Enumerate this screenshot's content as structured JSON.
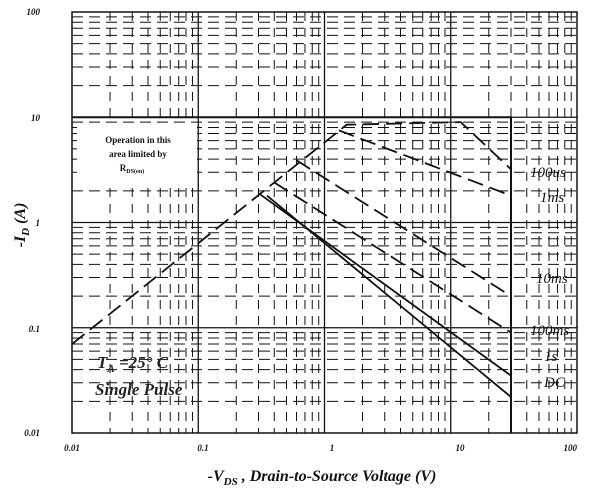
{
  "chart_data": {
    "type": "line",
    "xscale": "log",
    "yscale": "log",
    "xlim": [
      0.01,
      100
    ],
    "ylim": [
      0.01,
      100
    ],
    "grid": true,
    "x_ticks": [
      "0.01",
      "0.1",
      "1",
      "10",
      "100"
    ],
    "y_ticks": [
      "100",
      "10",
      "1",
      "0.1",
      "0.01"
    ],
    "xlabel_prefix": "-V",
    "xlabel_sub": "DS",
    "xlabel_rest": " , Drain-to-Source Voltage (V)",
    "ylabel_prefix": "-I",
    "ylabel_sub": "D",
    "ylabel_rest": " (A)",
    "rds_box": {
      "line1": "Operation in this",
      "line2": "area limited by",
      "line3": "R",
      "line3_sub": "DS(on)"
    },
    "conditions": {
      "line1_prefix": "T",
      "line1_sub": "A",
      "line1_rest": " =25° C",
      "line2": "Single Pulse"
    },
    "series": [
      {
        "name": "100us",
        "style": "dashed",
        "x": [
          0.01,
          1.5,
          12,
          30
        ],
        "y": [
          0.07,
          8.5,
          9,
          3.2
        ]
      },
      {
        "name": "1ms",
        "style": "dashed",
        "x": [
          1.3,
          30
        ],
        "y": [
          7.5,
          1.8
        ]
      },
      {
        "name": "10ms",
        "style": "dashed",
        "x": [
          0.6,
          30
        ],
        "y": [
          3.9,
          0.2
        ]
      },
      {
        "name": "100ms",
        "style": "dashed",
        "x": [
          0.4,
          30
        ],
        "y": [
          2.4,
          0.09
        ]
      },
      {
        "name": "1s",
        "style": "solid",
        "x": [
          0.3,
          30
        ],
        "y": [
          1.9,
          0.035
        ]
      },
      {
        "name": "DC",
        "style": "solid",
        "x": [
          0.35,
          30
        ],
        "y": [
          1.8,
          0.022
        ]
      }
    ],
    "curve_labels": [
      "100us",
      "1ms",
      "10ms",
      "100ms",
      "1s",
      "DC"
    ],
    "limit_box": {
      "x_max": 30,
      "y_max": 10
    }
  }
}
